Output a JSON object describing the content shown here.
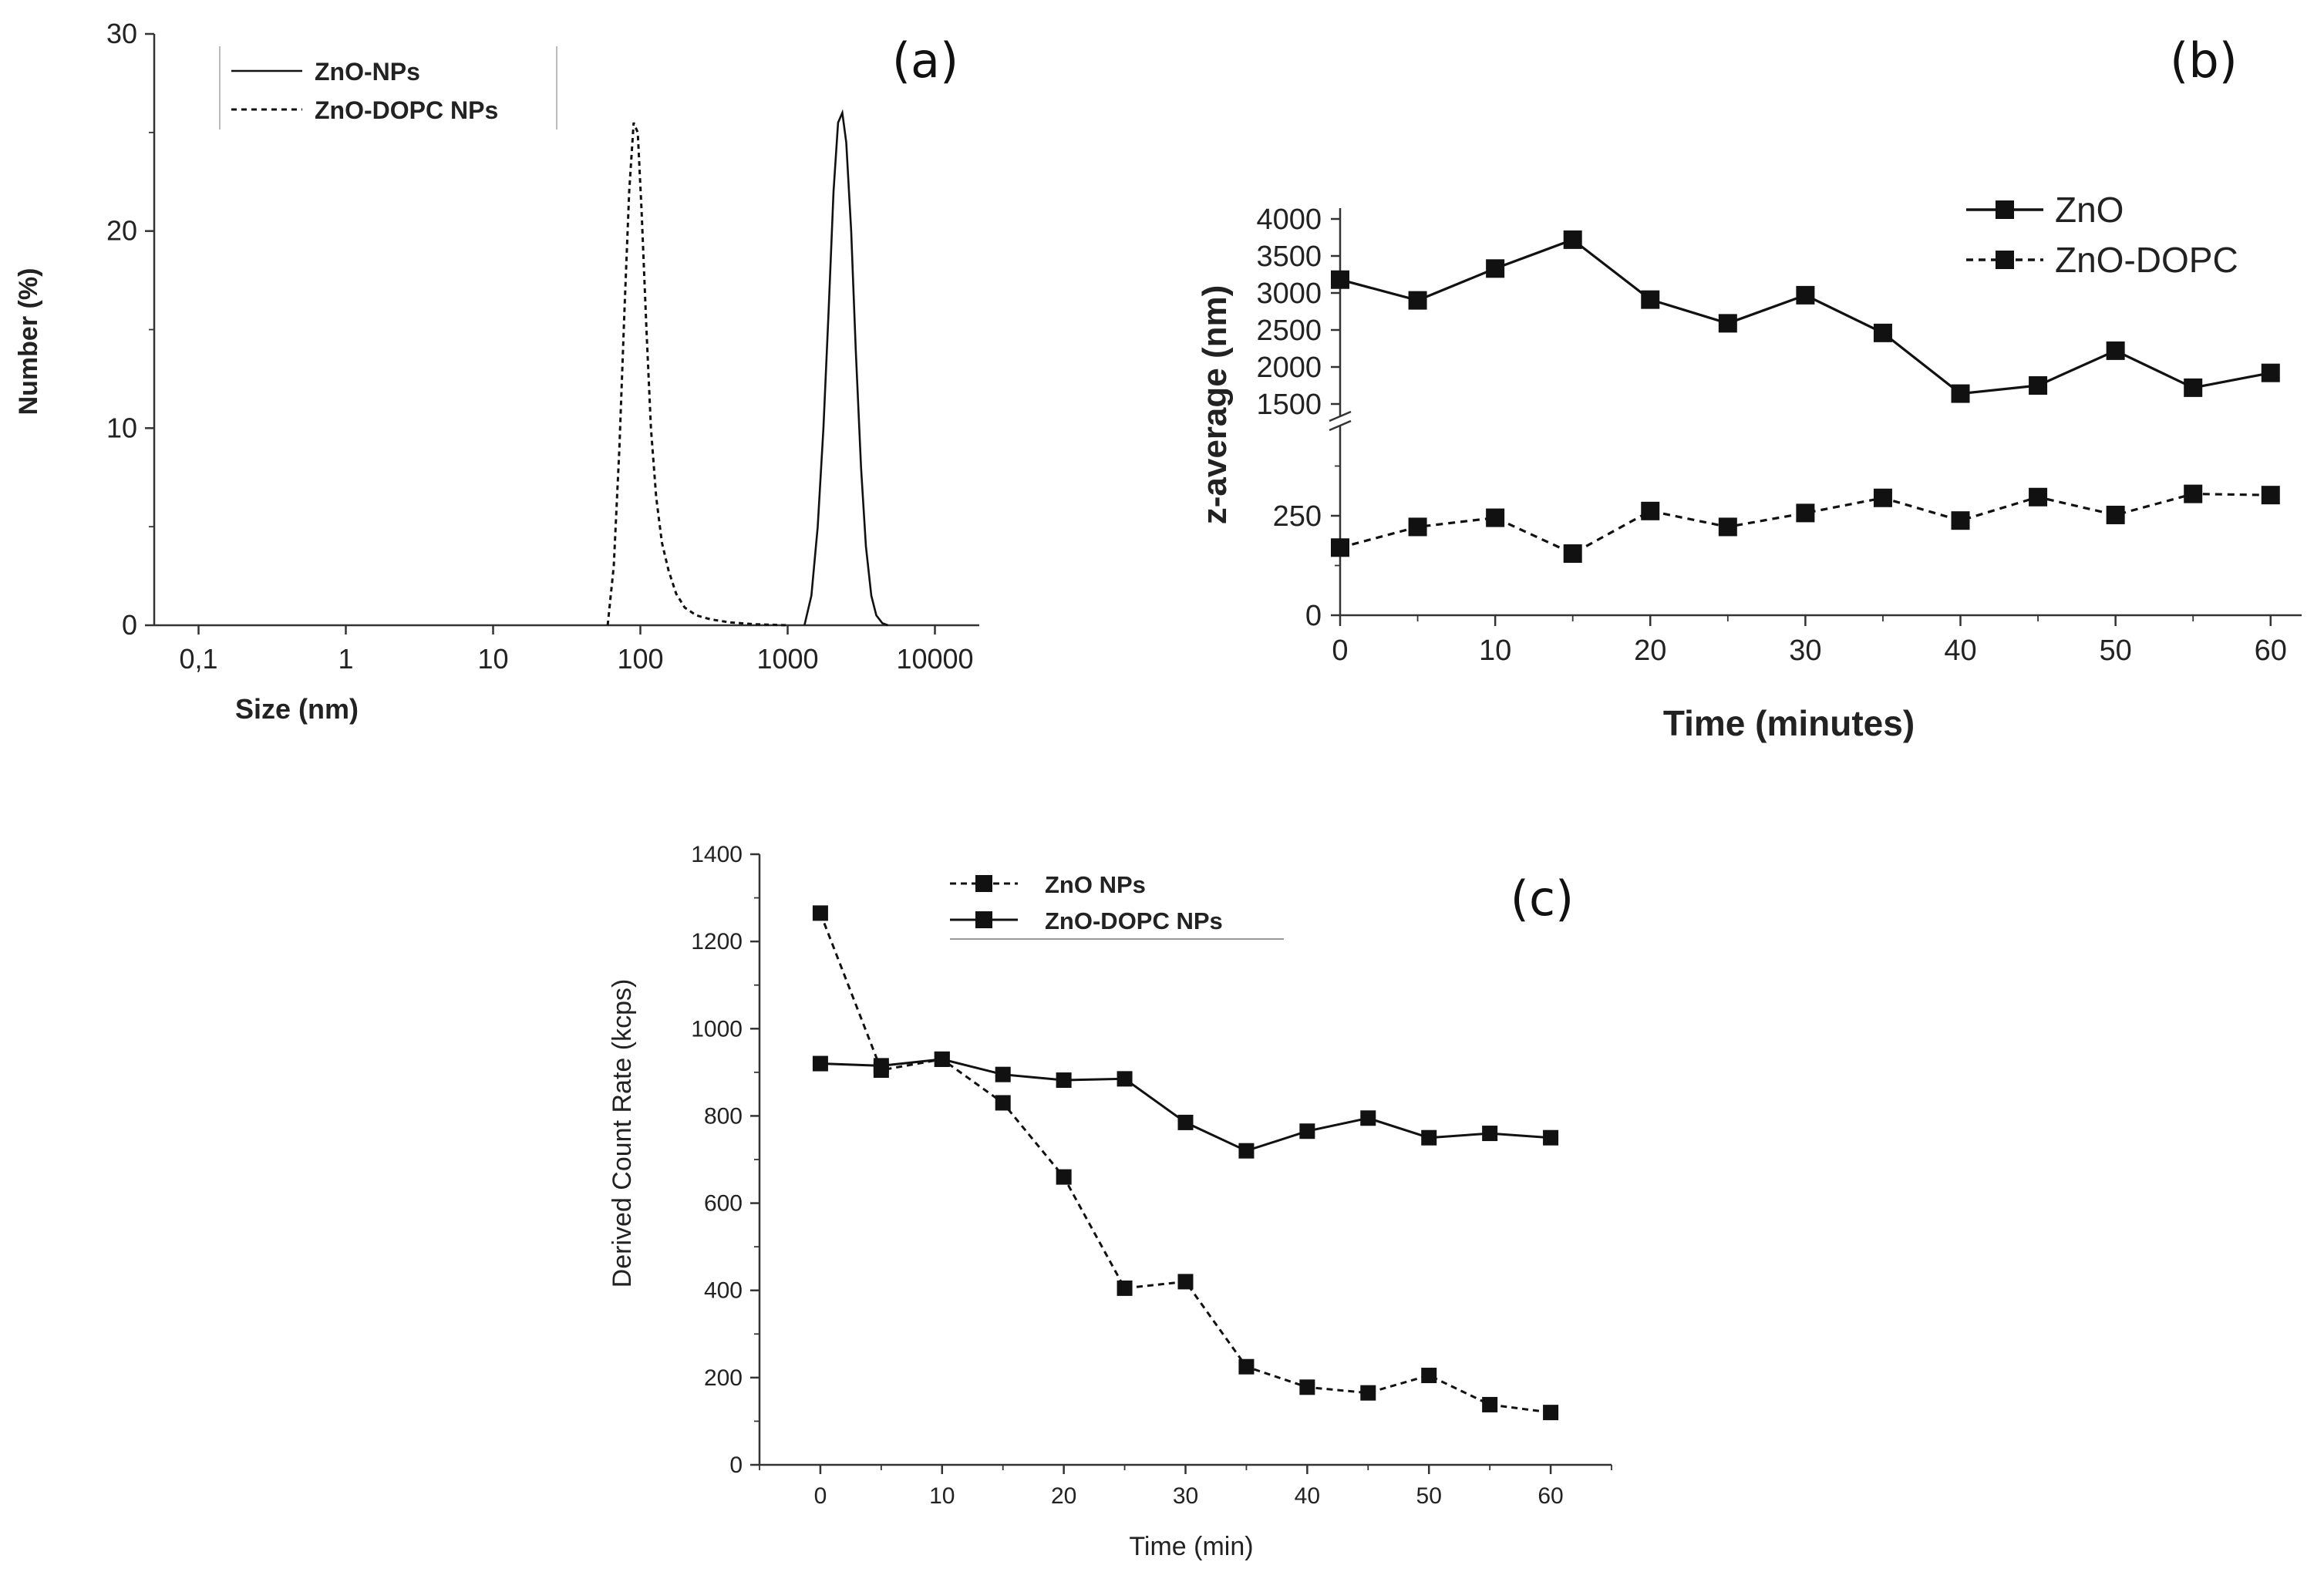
{
  "colors": {
    "line": "#111111",
    "axis": "#333333",
    "text": "#222222"
  },
  "chart_data": [
    {
      "id": "a",
      "type": "line",
      "panel_label": "(a)",
      "xscale": "log",
      "xlabel": "Size (nm)",
      "ylabel": "Number (%)",
      "xlim": [
        0.05,
        20000
      ],
      "ylim": [
        0,
        30
      ],
      "xticks": [
        0.1,
        1,
        10,
        100,
        1000,
        10000
      ],
      "xtick_labels": [
        "0,1",
        "1",
        "10",
        "100",
        "1000",
        "10000"
      ],
      "yticks": [
        0,
        10,
        20,
        30
      ],
      "ytick_labels": [
        "0",
        "10",
        "20",
        "30"
      ],
      "legend_position": "top-left",
      "series": [
        {
          "name": "ZnO-NPs",
          "style": "solid",
          "x": [
            1300,
            1450,
            1600,
            1750,
            1900,
            2050,
            2200,
            2350,
            2500,
            2700,
            2900,
            3150,
            3400,
            3700,
            4000,
            4400,
            4800
          ],
          "y": [
            0,
            1.5,
            5,
            10,
            16,
            22,
            25.5,
            26,
            24.5,
            20,
            14,
            8,
            4,
            1.5,
            0.5,
            0.1,
            0
          ]
        },
        {
          "name": "ZnO-DOPC NPs",
          "style": "dashed",
          "x": [
            60,
            66,
            72,
            78,
            84,
            90,
            96,
            102,
            110,
            118,
            128,
            140,
            155,
            175,
            200,
            240,
            300,
            400,
            600,
            1000
          ],
          "y": [
            0,
            3,
            9,
            16,
            22,
            25.5,
            25,
            21,
            15,
            10,
            6.5,
            4.2,
            2.8,
            1.6,
            0.9,
            0.5,
            0.3,
            0.15,
            0.05,
            0
          ]
        }
      ]
    },
    {
      "id": "b",
      "type": "line",
      "panel_label": "(b)",
      "xlabel": "Time (minutes)",
      "ylabel": "z-average (nm)",
      "xlim": [
        0,
        62
      ],
      "xticks": [
        0,
        10,
        20,
        30,
        40,
        50,
        60
      ],
      "x_minor_ticks": [
        5,
        15,
        25,
        35,
        45,
        55
      ],
      "broken_y_axis": true,
      "ylim_lower": [
        0,
        500
      ],
      "ylim_upper": [
        1500,
        4000
      ],
      "yticks_lower": [
        0,
        250
      ],
      "yticks_upper": [
        1500,
        2000,
        2500,
        3000,
        3500,
        4000
      ],
      "legend_position": "top-right",
      "series": [
        {
          "name": "ZnO",
          "style": "solid",
          "marker": "square",
          "x": [
            0,
            5,
            10,
            15,
            20,
            25,
            30,
            35,
            40,
            45,
            50,
            55,
            60
          ],
          "y": [
            3180,
            2900,
            3330,
            3720,
            2910,
            2590,
            2970,
            2460,
            1640,
            1750,
            2220,
            1720,
            1920
          ]
        },
        {
          "name": "ZnO-DOPC",
          "style": "dashed",
          "marker": "square",
          "x": [
            0,
            5,
            10,
            15,
            20,
            25,
            30,
            35,
            40,
            45,
            50,
            55,
            60
          ],
          "y": [
            170,
            222,
            245,
            155,
            262,
            222,
            257,
            295,
            238,
            297,
            252,
            305,
            302
          ]
        }
      ]
    },
    {
      "id": "c",
      "type": "line",
      "panel_label": "(c)",
      "xlabel": "Time (min)",
      "ylabel": "Derived Count Rate (kcps)",
      "xlim": [
        -5,
        65
      ],
      "ylim": [
        0,
        1400
      ],
      "xticks": [
        0,
        10,
        20,
        30,
        40,
        50,
        60
      ],
      "yticks": [
        0,
        200,
        400,
        600,
        800,
        1000,
        1200,
        1400
      ],
      "legend_position": "top-left",
      "series": [
        {
          "name": "ZnO NPs",
          "style": "dashed",
          "marker": "square",
          "x": [
            0,
            5,
            10,
            15,
            20,
            25,
            30,
            35,
            40,
            45,
            50,
            55,
            60
          ],
          "y": [
            1265,
            905,
            930,
            830,
            660,
            405,
            420,
            225,
            178,
            165,
            205,
            138,
            120
          ]
        },
        {
          "name": "ZnO-DOPC NPs",
          "style": "solid",
          "marker": "square",
          "x": [
            0,
            5,
            10,
            15,
            20,
            25,
            30,
            35,
            40,
            45,
            50,
            55,
            60
          ],
          "y": [
            920,
            915,
            930,
            895,
            882,
            885,
            785,
            720,
            765,
            795,
            750,
            760,
            750
          ]
        }
      ]
    }
  ]
}
